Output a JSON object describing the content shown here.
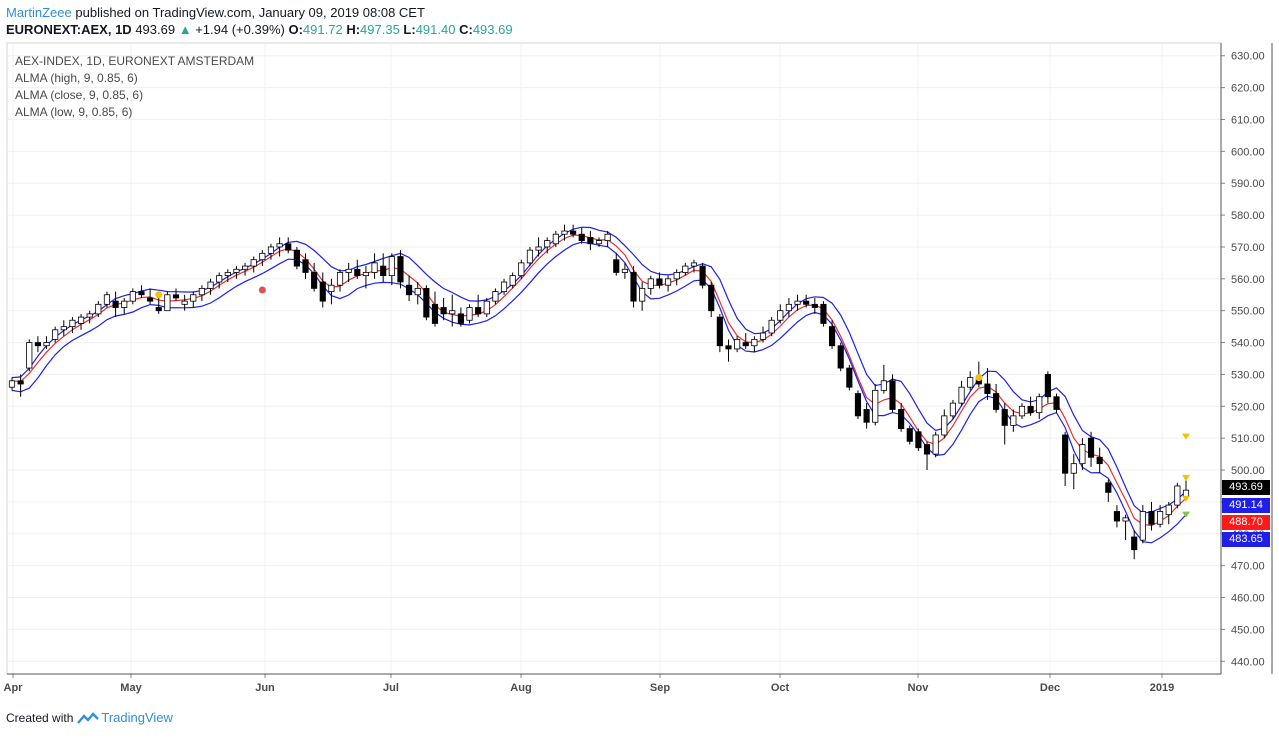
{
  "header": {
    "author": "MartinZeee",
    "published": "published on TradingView.com, January 09, 2019 08:08 CET",
    "symbol": "EURONEXT:AEX, 1D",
    "last": "493.69",
    "change": "+1.94 (+0.39%)",
    "o_label": "O:",
    "o_val": "491.72",
    "h_label": "H:",
    "h_val": "497.35",
    "l_label": "L:",
    "l_val": "491.40",
    "c_label": "C:",
    "c_val": "493.69"
  },
  "legend": {
    "title": "AEX-INDEX, 1D, EURONEXT AMSTERDAM",
    "alma_high": "ALMA (high, 9, 0.85, 6)",
    "alma_close": "ALMA (close, 9, 0.85, 6)",
    "alma_low": "ALMA (low, 9, 0.85, 6)"
  },
  "price_tags": {
    "last": "493.69",
    "alma_high": "491.14",
    "alma_close": "488.70",
    "alma_low": "483.65"
  },
  "footer": {
    "created_with": "Created with",
    "brand": "TradingView"
  },
  "colors": {
    "alma_high": "#2020e8",
    "alma_close": "#e83030",
    "alma_low": "#2020e8",
    "candle_up": "#ffffff",
    "candle_down": "#000000",
    "tag_last": "#000000",
    "tag_blue": "#1f1fe8",
    "tag_red": "#ff1a1a",
    "marker_yellow": "#f2c200",
    "marker_red": "#e05050",
    "marker_green": "#8bc34a"
  },
  "chart_data": {
    "type": "candlestick",
    "ylim": [
      436,
      634
    ],
    "y_ticks": [
      "630.00",
      "620.00",
      "610.00",
      "600.00",
      "590.00",
      "580.00",
      "570.00",
      "560.00",
      "550.00",
      "540.00",
      "530.00",
      "520.00",
      "510.00",
      "500.00",
      "490.00",
      "480.00",
      "470.00",
      "460.00",
      "450.00",
      "440.00"
    ],
    "x_ticks": [
      "Apr",
      "May",
      "Jun",
      "Jul",
      "Aug",
      "Sep",
      "Oct",
      "Nov",
      "Dec",
      "2019"
    ],
    "candles": [
      [
        526,
        529,
        525,
        528
      ],
      [
        528,
        530,
        523,
        527
      ],
      [
        532,
        541,
        531,
        540
      ],
      [
        540,
        542,
        537,
        539
      ],
      [
        539,
        542,
        538,
        540
      ],
      [
        541,
        545,
        540,
        544
      ],
      [
        544,
        547,
        542,
        545
      ],
      [
        545,
        548,
        543,
        547
      ],
      [
        546,
        549,
        544,
        548
      ],
      [
        548,
        550,
        546,
        549
      ],
      [
        549,
        553,
        548,
        552
      ],
      [
        552,
        556,
        551,
        555
      ],
      [
        553,
        556,
        548,
        551
      ],
      [
        551,
        554,
        549,
        553
      ],
      [
        553,
        557,
        552,
        556
      ],
      [
        556,
        558,
        554,
        555
      ],
      [
        554,
        557,
        552,
        553
      ],
      [
        551,
        554,
        549,
        550
      ],
      [
        550,
        556,
        550,
        555
      ],
      [
        555,
        557,
        553,
        554
      ],
      [
        552,
        555,
        550,
        553
      ],
      [
        553,
        556,
        551,
        555
      ],
      [
        555,
        558,
        553,
        557
      ],
      [
        557,
        560,
        555,
        559
      ],
      [
        559,
        562,
        557,
        561
      ],
      [
        561,
        563,
        559,
        562
      ],
      [
        562,
        564,
        560,
        563
      ],
      [
        563,
        565,
        561,
        564
      ],
      [
        564,
        567,
        562,
        566
      ],
      [
        566,
        569,
        564,
        568
      ],
      [
        568,
        571,
        566,
        570
      ],
      [
        570,
        573,
        567,
        571
      ],
      [
        571,
        573,
        568,
        569
      ],
      [
        569,
        570,
        563,
        564
      ],
      [
        566,
        568,
        560,
        562
      ],
      [
        562,
        565,
        556,
        557
      ],
      [
        559,
        562,
        551,
        553
      ],
      [
        556,
        560,
        552,
        558
      ],
      [
        558,
        563,
        556,
        562
      ],
      [
        562,
        565,
        559,
        563
      ],
      [
        563,
        566,
        560,
        561
      ],
      [
        561,
        564,
        557,
        562
      ],
      [
        562,
        568,
        560,
        565
      ],
      [
        564,
        568,
        559,
        561
      ],
      [
        561,
        568,
        558,
        567
      ],
      [
        567,
        569,
        557,
        559
      ],
      [
        558,
        561,
        553,
        555
      ],
      [
        555,
        559,
        552,
        557
      ],
      [
        557,
        558,
        547,
        548
      ],
      [
        552,
        556,
        545,
        546
      ],
      [
        551,
        554,
        547,
        549
      ],
      [
        549,
        555,
        545,
        550
      ],
      [
        549,
        551,
        545,
        546
      ],
      [
        547,
        552,
        546,
        551
      ],
      [
        551,
        555,
        548,
        549
      ],
      [
        549,
        554,
        548,
        553
      ],
      [
        553,
        557,
        552,
        556
      ],
      [
        556,
        560,
        555,
        559
      ],
      [
        558,
        562,
        557,
        561
      ],
      [
        561,
        566,
        560,
        565
      ],
      [
        565,
        570,
        564,
        569
      ],
      [
        569,
        573,
        567,
        570
      ],
      [
        570,
        573,
        568,
        572
      ],
      [
        571,
        575,
        570,
        574
      ],
      [
        574,
        577,
        572,
        575
      ],
      [
        575,
        577,
        573,
        574
      ],
      [
        574,
        576,
        571,
        572
      ],
      [
        573,
        575,
        569,
        571
      ],
      [
        571,
        573,
        570,
        572
      ],
      [
        572,
        575,
        570,
        574
      ],
      [
        566,
        568,
        561,
        562
      ],
      [
        562,
        565,
        560,
        563
      ],
      [
        562,
        564,
        551,
        553
      ],
      [
        553,
        559,
        550,
        557
      ],
      [
        557,
        561,
        555,
        560
      ],
      [
        560,
        562,
        557,
        558
      ],
      [
        558,
        561,
        556,
        560
      ],
      [
        560,
        563,
        558,
        562
      ],
      [
        562,
        565,
        561,
        564
      ],
      [
        564,
        566,
        562,
        565
      ],
      [
        564,
        565,
        557,
        558
      ],
      [
        558,
        559,
        548,
        550
      ],
      [
        548,
        549,
        537,
        539
      ],
      [
        539,
        541,
        534,
        538
      ],
      [
        538,
        542,
        537,
        541
      ],
      [
        540,
        543,
        538,
        539
      ],
      [
        539,
        542,
        537,
        541
      ],
      [
        541,
        545,
        540,
        543
      ],
      [
        543,
        548,
        542,
        547
      ],
      [
        547,
        552,
        546,
        550
      ],
      [
        550,
        554,
        548,
        552
      ],
      [
        552,
        555,
        550,
        553
      ],
      [
        553,
        555,
        551,
        552
      ],
      [
        552,
        554,
        549,
        551
      ],
      [
        552,
        553,
        545,
        546
      ],
      [
        545,
        547,
        538,
        539
      ],
      [
        539,
        540,
        531,
        532
      ],
      [
        532,
        533,
        525,
        526
      ],
      [
        524,
        525,
        516,
        517
      ],
      [
        519,
        521,
        513,
        515
      ],
      [
        515,
        527,
        514,
        525
      ],
      [
        525,
        533,
        524,
        528
      ],
      [
        528,
        530,
        518,
        519
      ],
      [
        519,
        521,
        512,
        513
      ],
      [
        513,
        514,
        508,
        509
      ],
      [
        512,
        513,
        506,
        507
      ],
      [
        508,
        509,
        500,
        505
      ],
      [
        505,
        512,
        504,
        511
      ],
      [
        511,
        519,
        510,
        517
      ],
      [
        517,
        522,
        516,
        521
      ],
      [
        521,
        528,
        520,
        526
      ],
      [
        526,
        531,
        525,
        529
      ],
      [
        529,
        534,
        526,
        527
      ],
      [
        527,
        532,
        522,
        524
      ],
      [
        524,
        527,
        518,
        519
      ],
      [
        519,
        521,
        508,
        514
      ],
      [
        514,
        519,
        512,
        517
      ],
      [
        517,
        521,
        516,
        520
      ],
      [
        520,
        523,
        517,
        518
      ],
      [
        518,
        524,
        516,
        523
      ],
      [
        530,
        531,
        521,
        523
      ],
      [
        523,
        524,
        518,
        519
      ],
      [
        511,
        512,
        495,
        499
      ],
      [
        499,
        505,
        494,
        502
      ],
      [
        502,
        510,
        500,
        508
      ],
      [
        510,
        512,
        501,
        504
      ],
      [
        504,
        507,
        499,
        502
      ],
      [
        496,
        497,
        490,
        493
      ],
      [
        487,
        489,
        482,
        484
      ],
      [
        484,
        486,
        478,
        485
      ],
      [
        479,
        481,
        472,
        475
      ],
      [
        478,
        489,
        477,
        487
      ],
      [
        487,
        490,
        481,
        483
      ],
      [
        483,
        489,
        482,
        487
      ],
      [
        486,
        490,
        483,
        489
      ],
      [
        489,
        496,
        488,
        495
      ],
      [
        491.72,
        497.35,
        491.4,
        493.69
      ]
    ]
  }
}
